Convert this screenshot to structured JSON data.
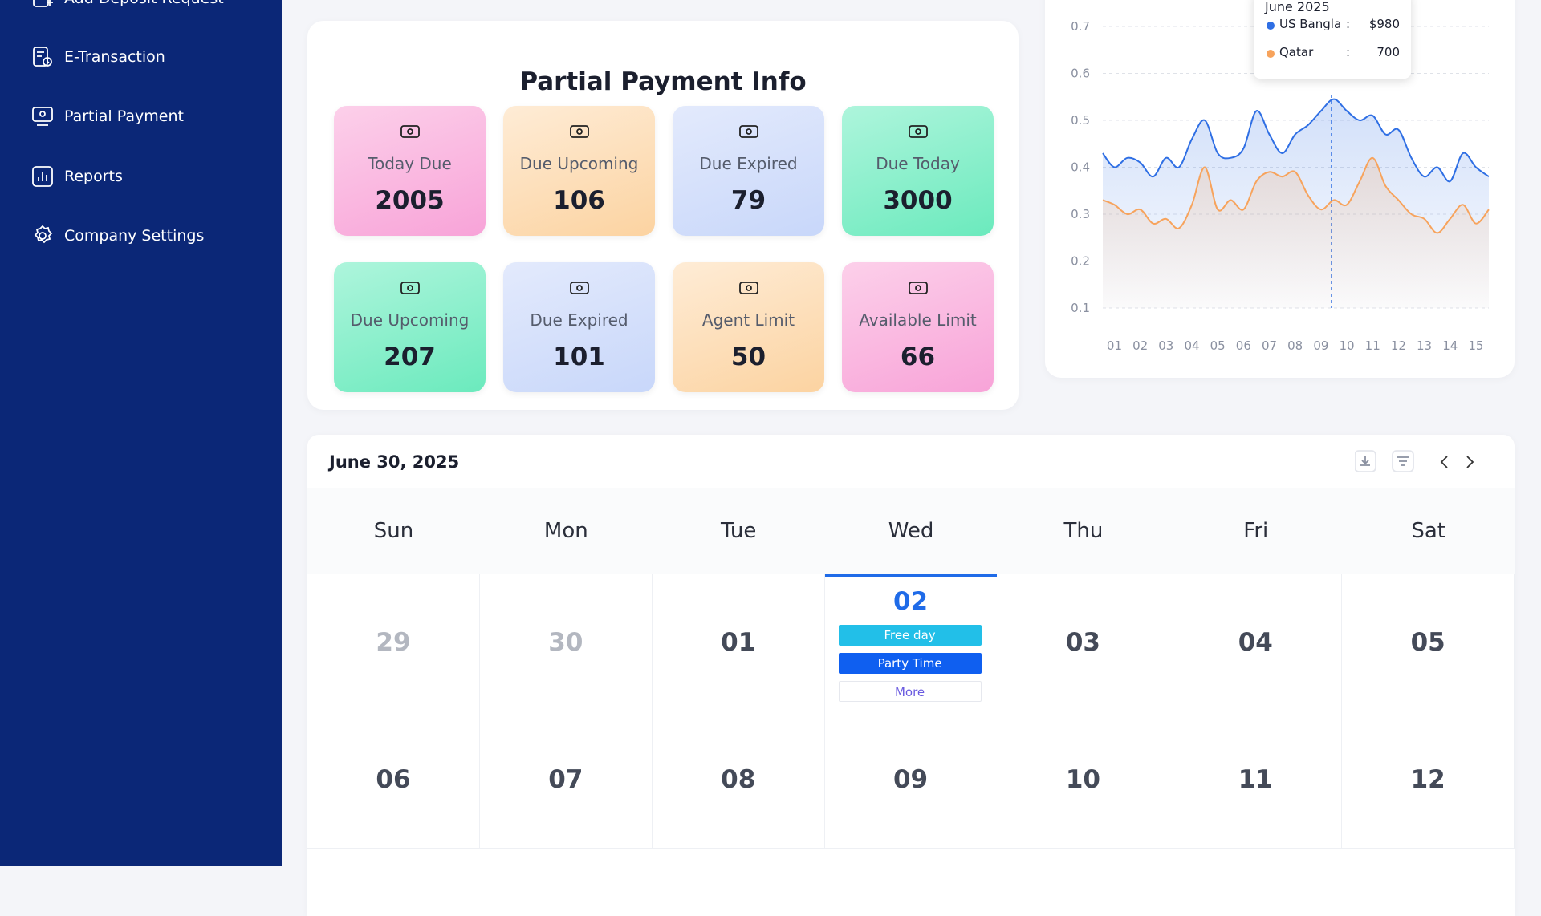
{
  "sidebar": {
    "items": [
      "Add Deposit Request",
      "E-Transaction",
      "Partial Payment",
      "Reports",
      "Company Settings"
    ]
  },
  "stats": {
    "title": "Partial Payment Info",
    "cards": [
      {
        "label": "Today Due",
        "value": 2005,
        "theme": "pink"
      },
      {
        "label": "Due Upcoming",
        "value": 106,
        "theme": "peach"
      },
      {
        "label": "Due Expired",
        "value": 79,
        "theme": "blue"
      },
      {
        "label": "Due Today",
        "value": 3000,
        "theme": "green"
      },
      {
        "label": "Due Upcoming",
        "value": 207,
        "theme": "green"
      },
      {
        "label": "Due Expired",
        "value": 101,
        "theme": "blue"
      },
      {
        "label": "Agent Limit",
        "value": 50,
        "theme": "peach"
      },
      {
        "label": "Available Limit",
        "value": 66,
        "theme": "pink"
      }
    ]
  },
  "chart_data": {
    "type": "line",
    "x": [
      0.55,
      1,
      1.5,
      2,
      2.5,
      3,
      3.5,
      4,
      4.5,
      5,
      5.5,
      6,
      6.5,
      7,
      7.5,
      8,
      8.5,
      9,
      9.5,
      10,
      10.5,
      11,
      11.5,
      12,
      12.5,
      13,
      13.5,
      14,
      14.5,
      15,
      15.5
    ],
    "series": [
      {
        "name": "US Bangla",
        "color": "#2f6fe4",
        "values": [
          0.43,
          0.4,
          0.42,
          0.41,
          0.38,
          0.42,
          0.4,
          0.46,
          0.5,
          0.43,
          0.42,
          0.44,
          0.52,
          0.47,
          0.43,
          0.47,
          0.49,
          0.52,
          0.545,
          0.52,
          0.5,
          0.51,
          0.47,
          0.48,
          0.42,
          0.38,
          0.4,
          0.37,
          0.43,
          0.4,
          0.38
        ]
      },
      {
        "name": "Qatar",
        "color": "#f7a35c",
        "values": [
          0.33,
          0.32,
          0.3,
          0.31,
          0.28,
          0.29,
          0.27,
          0.32,
          0.4,
          0.31,
          0.33,
          0.31,
          0.37,
          0.39,
          0.38,
          0.39,
          0.34,
          0.31,
          0.33,
          0.32,
          0.37,
          0.42,
          0.36,
          0.33,
          0.3,
          0.29,
          0.26,
          0.29,
          0.32,
          0.28,
          0.31
        ]
      }
    ],
    "xlim": [
      0.55,
      15.5
    ],
    "ylim": [
      0.1,
      0.7
    ],
    "yticks": [
      0.1,
      0.2,
      0.3,
      0.4,
      0.5,
      0.6,
      0.7
    ],
    "xticks": [
      {
        "value": 1,
        "label": "01"
      },
      {
        "value": 2,
        "label": "02"
      },
      {
        "value": 3,
        "label": "03"
      },
      {
        "value": 4,
        "label": "04"
      },
      {
        "value": 5,
        "label": "05"
      },
      {
        "value": 6,
        "label": "06"
      },
      {
        "value": 7,
        "label": "07"
      },
      {
        "value": 8,
        "label": "08"
      },
      {
        "value": 9,
        "label": "09"
      },
      {
        "value": 10,
        "label": "10"
      },
      {
        "value": 11,
        "label": "11"
      },
      {
        "value": 12,
        "label": "12"
      },
      {
        "value": 13,
        "label": "13"
      },
      {
        "value": 14,
        "label": "14"
      },
      {
        "value": 15,
        "label": "15"
      }
    ],
    "grid": true,
    "tooltip": {
      "title": "June 2025",
      "separator": ":",
      "values": [
        "$980",
        "700"
      ]
    }
  },
  "calendar": {
    "title": "June 30, 2025",
    "weekdays": [
      "Sun",
      "Mon",
      "Tue",
      "Wed",
      "Thu",
      "Fri",
      "Sat"
    ],
    "weeks": [
      [
        {
          "day": "29",
          "outside": true
        },
        {
          "day": "30",
          "outside": true
        },
        {
          "day": "01"
        },
        {
          "day": "02",
          "today": true,
          "events": [
            "Free day",
            "Party Time"
          ],
          "more": "More"
        },
        {
          "day": "03"
        },
        {
          "day": "04"
        },
        {
          "day": "05"
        }
      ],
      [
        {
          "day": "06"
        },
        {
          "day": "07"
        },
        {
          "day": "08"
        },
        {
          "day": "09"
        },
        {
          "day": "10"
        },
        {
          "day": "11"
        },
        {
          "day": "12"
        }
      ]
    ]
  }
}
